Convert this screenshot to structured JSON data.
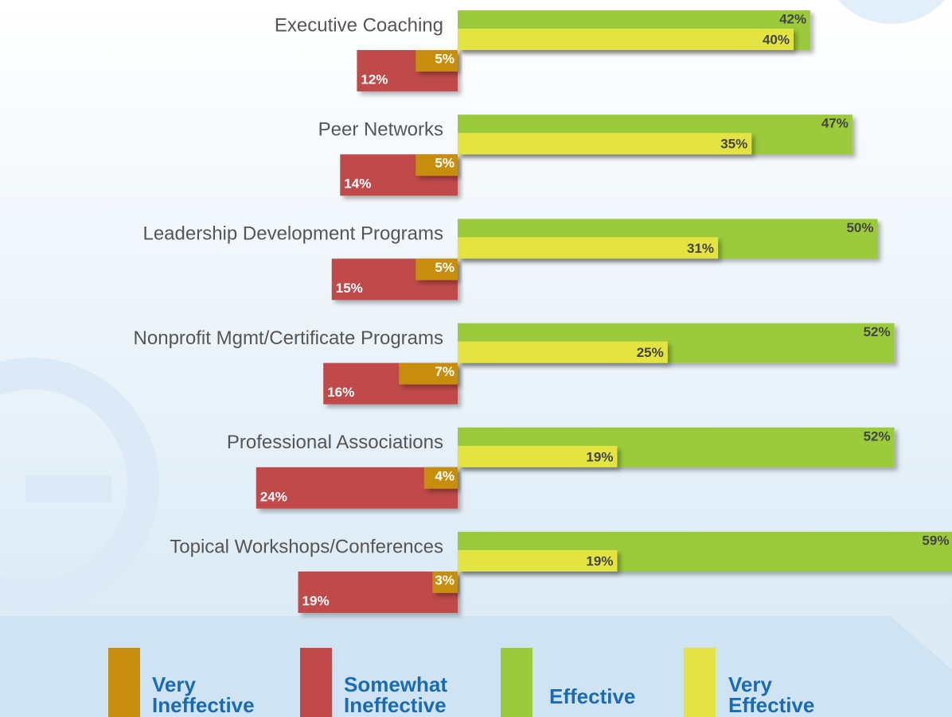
{
  "chart_data": {
    "type": "diverging-bar",
    "categories": [
      "Executive Coaching",
      "Peer Networks",
      "Leadership Development Programs",
      "Nonprofit Mgmt/Certificate Programs",
      "Professional Associations",
      "Topical Workshops/Conferences"
    ],
    "series": [
      {
        "name": "Very Ineffective",
        "color": "#c78e0e",
        "side": "negative",
        "values": [
          5,
          5,
          5,
          7,
          4,
          3
        ],
        "value_labels": [
          "5%",
          "5%",
          "5%",
          "7%",
          "4%",
          "3%"
        ]
      },
      {
        "name": "Somewhat Ineffective",
        "color": "#c0494a",
        "side": "negative",
        "values": [
          12,
          14,
          15,
          16,
          24,
          19
        ],
        "value_labels": [
          "12%",
          "14%",
          "15%",
          "16%",
          "24%",
          "19%"
        ]
      },
      {
        "name": "Effective",
        "color": "#9bcb3b",
        "side": "positive",
        "values": [
          42,
          47,
          50,
          52,
          52,
          59
        ],
        "value_labels": [
          "42%",
          "47%",
          "50%",
          "52%",
          "52%",
          "59%"
        ]
      },
      {
        "name": "Very Effective",
        "color": "#e3e443",
        "side": "positive",
        "values": [
          40,
          35,
          31,
          25,
          19,
          19
        ],
        "value_labels": [
          "40%",
          "35%",
          "31%",
          "25%",
          "19%",
          "19%"
        ]
      }
    ]
  }
}
